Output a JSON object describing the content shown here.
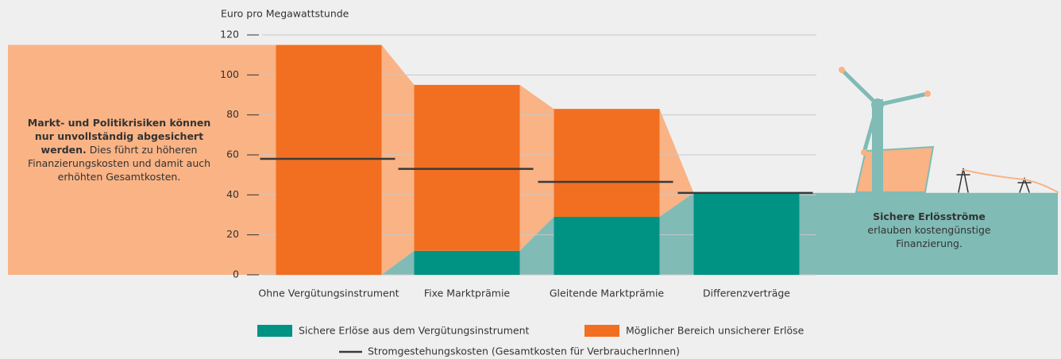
{
  "chart_data": {
    "type": "stacked-bar",
    "y_axis_title": "Euro pro Megawattstunde",
    "categories": [
      "Ohne Vergütungsinstrument",
      "Fixe Marktprämie",
      "Gleitende Marktprämie",
      "Differenzverträge"
    ],
    "series": [
      {
        "name": "Sichere Erlöse aus dem Vergütungsinstrument",
        "color": "#009384",
        "connector_color": "#80bbb6",
        "values": [
          0,
          12,
          29,
          41
        ]
      },
      {
        "name": "Möglicher Bereich unsicherer Erlöse",
        "color": "#f26f21",
        "connector_color": "#f9b385",
        "values": [
          115,
          83,
          54,
          0
        ]
      }
    ],
    "cost_line": {
      "name": "Stromgestehungskosten (Gesamtkosten für VerbraucherInnen)",
      "color": "#3a3a3a",
      "values": [
        58,
        53,
        46.5,
        41
      ]
    },
    "ylim": [
      0,
      120
    ],
    "yticks": [
      0,
      20,
      40,
      60,
      80,
      100,
      120
    ],
    "grid": true,
    "annotations": {
      "left": {
        "bold": "Markt- und Politikrisiken können nur unvollständig abgesichert werden.",
        "text": "Dies führt zu höheren Finanzierungskosten und damit auch erhöhten Gesamtkosten."
      },
      "right": {
        "bold": "Sichere Erlösströme",
        "text": "erlauben kostengünstige Finanzierung."
      }
    }
  }
}
